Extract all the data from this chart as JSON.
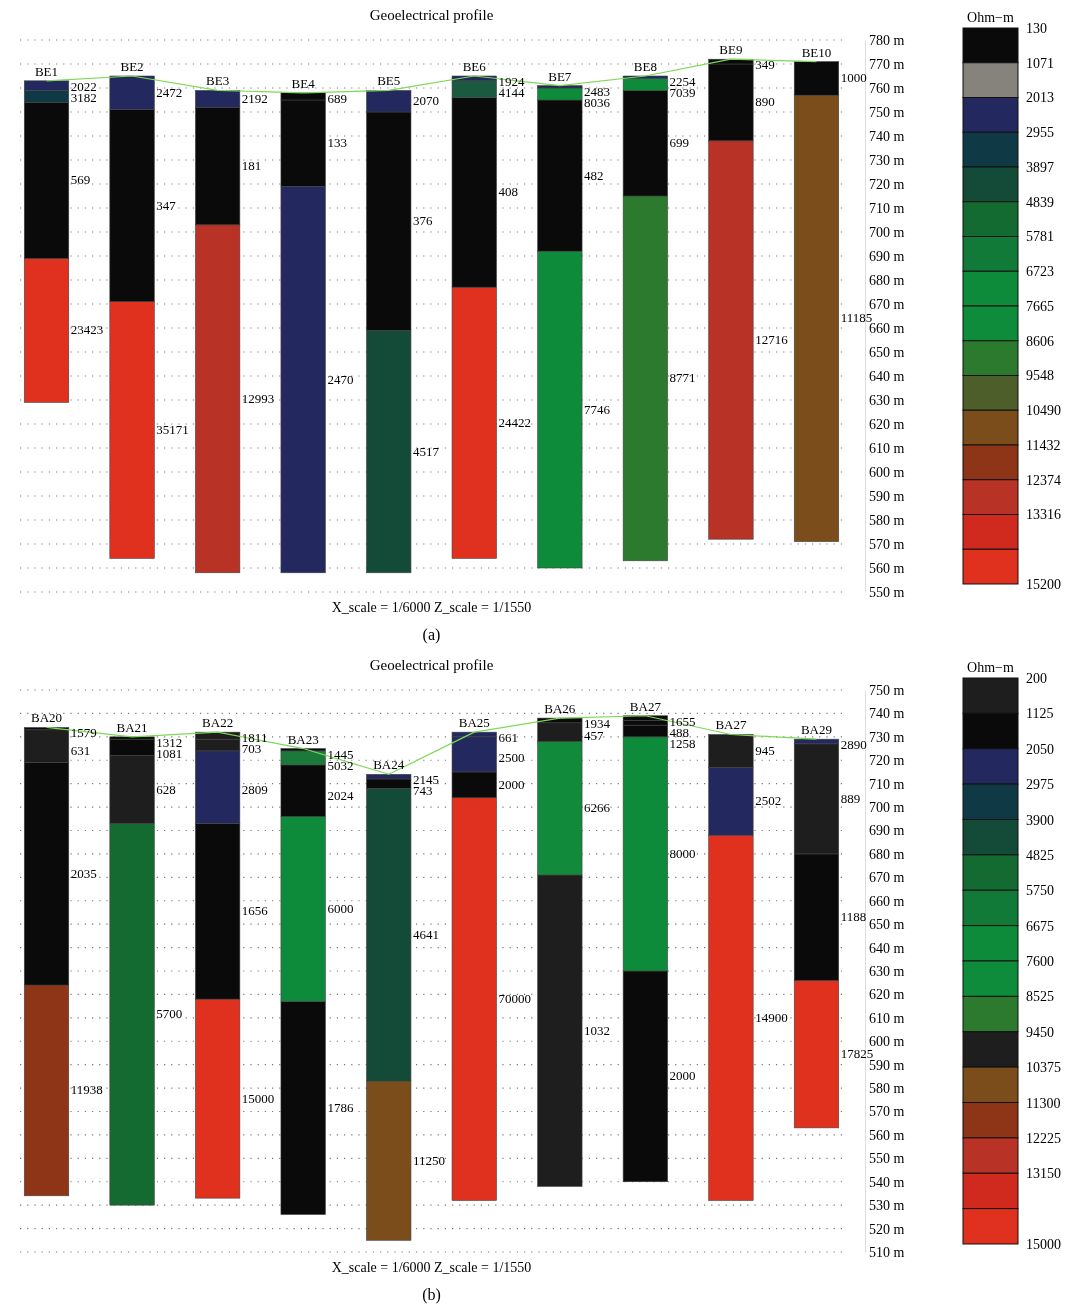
{
  "chart_data": [
    {
      "type": "bar",
      "title": "Geoelectrical profile",
      "ylim": [
        550,
        780
      ],
      "yticks": [
        {
          "value": 550,
          "label": "550 m"
        },
        {
          "value": 560,
          "label": "560 m"
        },
        {
          "value": 570,
          "label": "570 m"
        },
        {
          "value": 580,
          "label": "580 m"
        },
        {
          "value": 590,
          "label": "590 m"
        },
        {
          "value": 600,
          "label": "600 m"
        },
        {
          "value": 610,
          "label": "610 m"
        },
        {
          "value": 620,
          "label": "620 m"
        },
        {
          "value": 630,
          "label": "630 m"
        },
        {
          "value": 640,
          "label": "640 m"
        },
        {
          "value": 650,
          "label": "650 m"
        },
        {
          "value": 660,
          "label": "660 m"
        },
        {
          "value": 670,
          "label": "670 m"
        },
        {
          "value": 680,
          "label": "680 m"
        },
        {
          "value": 690,
          "label": "690 m"
        },
        {
          "value": 700,
          "label": "700 m"
        },
        {
          "value": 710,
          "label": "710 m"
        },
        {
          "value": 720,
          "label": "720 m"
        },
        {
          "value": 730,
          "label": "730 m"
        },
        {
          "value": 740,
          "label": "740 m"
        },
        {
          "value": 750,
          "label": "750 m"
        },
        {
          "value": 760,
          "label": "760 m"
        },
        {
          "value": 770,
          "label": "770 m"
        },
        {
          "value": 780,
          "label": "780 m"
        }
      ],
      "grid": "y",
      "categories": [
        "BE1",
        "BE2",
        "BE3",
        "BE4",
        "BE5",
        "BE6",
        "BE7",
        "BE8",
        "BE9",
        "BE10"
      ],
      "series": [
        {
          "base": [
            629,
            564,
            558,
            558,
            558,
            564,
            560,
            563,
            572,
            571
          ],
          "values": [
            60,
            107,
            145,
            161,
            101,
            113,
            132,
            152,
            166,
            186
          ],
          "colors": [
            "#e0301e",
            "#e0301e",
            "#b83226",
            "#23295e",
            "#134a38",
            "#e0301e",
            "#0d8b3a",
            "#2b7a2e",
            "#b83226",
            "#7a4d1a"
          ]
        },
        {
          "base": [
            689,
            671,
            703,
            719,
            659,
            677,
            692,
            715,
            738,
            757
          ],
          "values": [
            65,
            80,
            49,
            36,
            91,
            79,
            63,
            44,
            32,
            14
          ],
          "colors": [
            "#0a0a0a",
            "#0a0a0a",
            "#0a0a0a",
            "#0a0a0a",
            "#0a0a0a",
            "#0a0a0a",
            "#0a0a0a",
            "#0a0a0a",
            "#0a0a0a",
            "#0a0a0a"
          ]
        },
        {
          "base": [
            754,
            751,
            752,
            755,
            750,
            756,
            755,
            759,
            770,
            null
          ],
          "values": [
            5,
            14,
            7,
            3,
            9,
            7,
            5,
            5,
            2,
            null
          ],
          "colors": [
            "#0f3a45",
            "#23295e",
            "#23295e",
            "#0a0a0a",
            "#23295e",
            "#1a5a3e",
            "#0d8b3a",
            "#0d8b3a",
            "#0a0a0a",
            null
          ]
        },
        {
          "base": [
            759,
            null,
            null,
            null,
            null,
            763,
            760,
            764,
            null,
            null
          ],
          "values": [
            4,
            null,
            null,
            null,
            null,
            2,
            1,
            1,
            null,
            null
          ],
          "colors": [
            "#23295e",
            null,
            null,
            null,
            null,
            "#23295e",
            "#23295e",
            "#23295e",
            null,
            null
          ]
        },
        {
          "type": "line",
          "color": "#7ed957",
          "values": [
            763,
            765,
            759,
            758,
            759,
            765,
            761,
            765,
            772,
            771
          ]
        }
      ],
      "clabel": "Ohm−m",
      "clim": [
        130,
        15200
      ],
      "cticks": [
        130,
        1071,
        2013,
        2955,
        3897,
        4839,
        5781,
        6723,
        7665,
        8606,
        9548,
        10490,
        11432,
        12374,
        13316,
        15200
      ],
      "colors": [
        "#0a0a0a",
        "#86827c",
        "#23295e",
        "#0f3a45",
        "#134a38",
        "#146b32",
        "#117a38",
        "#0d8b3a",
        "#0e8c3c",
        "#2b7a2e",
        "#4e5e2a",
        "#7a4d1a",
        "#8e3518",
        "#b83226",
        "#d02a1e",
        "#e0301e"
      ],
      "annotations": [
        "X_scale = 1/6000 Z_scale = 1/1550",
        "(a)",
        "23423",
        "569",
        "3182",
        "2022",
        "35171",
        "347",
        "2472",
        "12993",
        "181",
        "2192",
        "2470",
        "133",
        "689",
        "4517",
        "376",
        "2070",
        "24422",
        "408",
        "4144",
        "1924",
        "7746",
        "482",
        "8036",
        "2483",
        "8771",
        "699",
        "7039",
        "2254",
        "12716",
        "890",
        "349",
        "11185",
        "1000"
      ]
    },
    {
      "type": "bar",
      "title": "Geoelectrical profile",
      "ylim": [
        510,
        750
      ],
      "yticks": [
        {
          "value": 510,
          "label": "510 m"
        },
        {
          "value": 520,
          "label": "520 m"
        },
        {
          "value": 530,
          "label": "530 m"
        },
        {
          "value": 540,
          "label": "540 m"
        },
        {
          "value": 550,
          "label": "550 m"
        },
        {
          "value": 560,
          "label": "560 m"
        },
        {
          "value": 570,
          "label": "570 m"
        },
        {
          "value": 580,
          "label": "580 m"
        },
        {
          "value": 590,
          "label": "590 m"
        },
        {
          "value": 600,
          "label": "600 m"
        },
        {
          "value": 610,
          "label": "610 m"
        },
        {
          "value": 620,
          "label": "620 m"
        },
        {
          "value": 630,
          "label": "630 m"
        },
        {
          "value": 640,
          "label": "640 m"
        },
        {
          "value": 650,
          "label": "650 m"
        },
        {
          "value": 660,
          "label": "660 m"
        },
        {
          "value": 670,
          "label": "670 m"
        },
        {
          "value": 680,
          "label": "680 m"
        },
        {
          "value": 690,
          "label": "690 m"
        },
        {
          "value": 700,
          "label": "700 m"
        },
        {
          "value": 710,
          "label": "710 m"
        },
        {
          "value": 720,
          "label": "720 m"
        },
        {
          "value": 730,
          "label": "730 m"
        },
        {
          "value": 740,
          "label": "740 m"
        },
        {
          "value": 750,
          "label": "750 m"
        }
      ],
      "grid": "y",
      "categories": [
        "BA20",
        "BA21",
        "BA22",
        "BA23",
        "BA24",
        "BA25",
        "BA26",
        "BA27",
        "BA27",
        "BA29"
      ],
      "series": [
        {
          "base": [
            534,
            530,
            533,
            526,
            515,
            532,
            538,
            540,
            532,
            563
          ],
          "values": [
            90,
            163,
            85,
            91,
            68,
            172,
            133,
            90,
            156,
            63
          ],
          "colors": [
            "#8e3518",
            "#146b32",
            "#e0301e",
            "#0a0a0a",
            "#7a4d1a",
            "#e0301e",
            "#1e1e1e",
            "#0a0a0a",
            "#e0301e",
            "#e0301e"
          ]
        },
        {
          "base": [
            624,
            693,
            618,
            617,
            583,
            704,
            671,
            630,
            688,
            626
          ],
          "values": [
            95,
            29,
            75,
            79,
            125,
            11,
            57,
            100,
            29,
            54
          ],
          "colors": [
            "#0a0a0a",
            "#1e1e1e",
            "#0a0a0a",
            "#0d8b3a",
            "#134a38",
            "#0a0a0a",
            "#128a3c",
            "#0d8b3a",
            "#23295e",
            "#0a0a0a"
          ]
        },
        {
          "base": [
            719,
            722,
            693,
            696,
            708,
            715,
            728,
            730,
            717,
            680
          ],
          "values": [
            14,
            7,
            31,
            22,
            4,
            15,
            8,
            5,
            14,
            47
          ],
          "colors": [
            "#1e1e1e",
            "#0a0a0a",
            "#23295e",
            "#0a0a0a",
            "#0a0a0a",
            "#23295e",
            "#1e1e1e",
            "#0a0a0a",
            "#1e1e1e",
            "#1e1e1e"
          ]
        },
        {
          "base": [
            733,
            729,
            724,
            718,
            712,
            730,
            736,
            735,
            null,
            727
          ],
          "values": [
            1,
            1,
            5,
            6,
            2,
            2,
            2,
            2,
            null,
            2
          ],
          "colors": [
            "#0a0a0a",
            "#0a0a0a",
            "#1e1e1e",
            "#1b7a3a",
            "#23295e",
            "#23295e",
            "#0a0a0a",
            "#0a0a0a",
            null,
            "#23295e"
          ]
        },
        {
          "base": [
            null,
            null,
            729,
            724,
            null,
            null,
            null,
            737,
            null,
            null
          ],
          "values": [
            null,
            null,
            3,
            1,
            null,
            null,
            null,
            2,
            null,
            null
          ],
          "colors": [
            null,
            null,
            "#1e1e1e",
            "#0a0a0a",
            null,
            null,
            null,
            "#0a0a0a",
            null,
            null
          ]
        },
        {
          "type": "line",
          "color": "#7ed957",
          "values": [
            734,
            730,
            732,
            725,
            714,
            732,
            738,
            739,
            731,
            729
          ]
        }
      ],
      "clabel": "Ohm−m",
      "clim": [
        200,
        15000
      ],
      "cticks": [
        200,
        1125,
        2050,
        2975,
        3900,
        4825,
        5750,
        6675,
        7600,
        8525,
        9450,
        10375,
        11300,
        12225,
        13150,
        15000
      ],
      "colors": [
        "#1e1e1e",
        "#0a0a0a",
        "#23295e",
        "#0f3a45",
        "#134a38",
        "#146b32",
        "#117a38",
        "#0d8b3a",
        "#0e8c3c",
        "#2b7a2e",
        "#1e1e1e",
        "#7a4d1a",
        "#8e3518",
        "#b83226",
        "#d02a1e",
        "#e0301e"
      ],
      "annotations": [
        "X_scale = 1/6000 Z_scale = 1/1550",
        "(b)",
        "11938",
        "2035",
        "631",
        "1579",
        "5700",
        "628",
        "1081",
        "1312",
        "15000",
        "1656",
        "2809",
        "703",
        "1811",
        "1786",
        "6000",
        "2024",
        "5032",
        "1445",
        "11250",
        "4641",
        "743",
        "2145",
        "70000",
        "2000",
        "2500",
        "661",
        "1032",
        "6266",
        "457",
        "1934",
        "2000",
        "8000",
        "1258",
        "488",
        "1655",
        "14900",
        "2502",
        "945",
        "17825",
        "1188",
        "889",
        "2890"
      ]
    }
  ]
}
